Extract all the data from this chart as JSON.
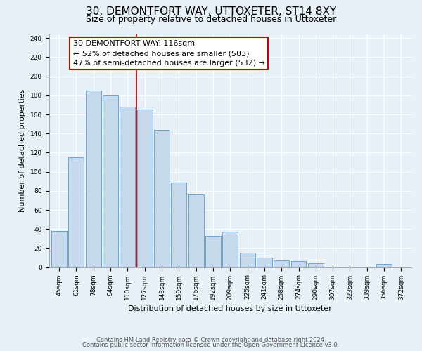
{
  "title": "30, DEMONTFORT WAY, UTTOXETER, ST14 8XY",
  "subtitle": "Size of property relative to detached houses in Uttoxeter",
  "xlabel": "Distribution of detached houses by size in Uttoxeter",
  "ylabel": "Number of detached properties",
  "bar_labels": [
    "45sqm",
    "61sqm",
    "78sqm",
    "94sqm",
    "110sqm",
    "127sqm",
    "143sqm",
    "159sqm",
    "176sqm",
    "192sqm",
    "209sqm",
    "225sqm",
    "241sqm",
    "258sqm",
    "274sqm",
    "290sqm",
    "307sqm",
    "323sqm",
    "339sqm",
    "356sqm",
    "372sqm"
  ],
  "bar_values": [
    38,
    115,
    185,
    180,
    168,
    165,
    144,
    89,
    76,
    33,
    37,
    15,
    10,
    7,
    6,
    4,
    0,
    0,
    0,
    3,
    0
  ],
  "bar_color": "#c5d8ec",
  "bar_edge_color": "#5b9bd5",
  "annotation_box_text": "30 DEMONTFORT WAY: 116sqm\n← 52% of detached houses are smaller (583)\n47% of semi-detached houses are larger (532) →",
  "vline_x": 4.5,
  "vline_color": "#cc0000",
  "ylim": [
    0,
    245
  ],
  "yticks": [
    0,
    20,
    40,
    60,
    80,
    100,
    120,
    140,
    160,
    180,
    200,
    220,
    240
  ],
  "bg_color": "#e8f0f8",
  "plot_bg_color": "#e8f0f8",
  "footer_line1": "Contains HM Land Registry data © Crown copyright and database right 2024.",
  "footer_line2": "Contains public sector information licensed under the Open Government Licence v3.0.",
  "title_fontsize": 11,
  "subtitle_fontsize": 9,
  "axis_label_fontsize": 8,
  "tick_fontsize": 6.5,
  "annotation_fontsize": 8,
  "footer_fontsize": 6
}
